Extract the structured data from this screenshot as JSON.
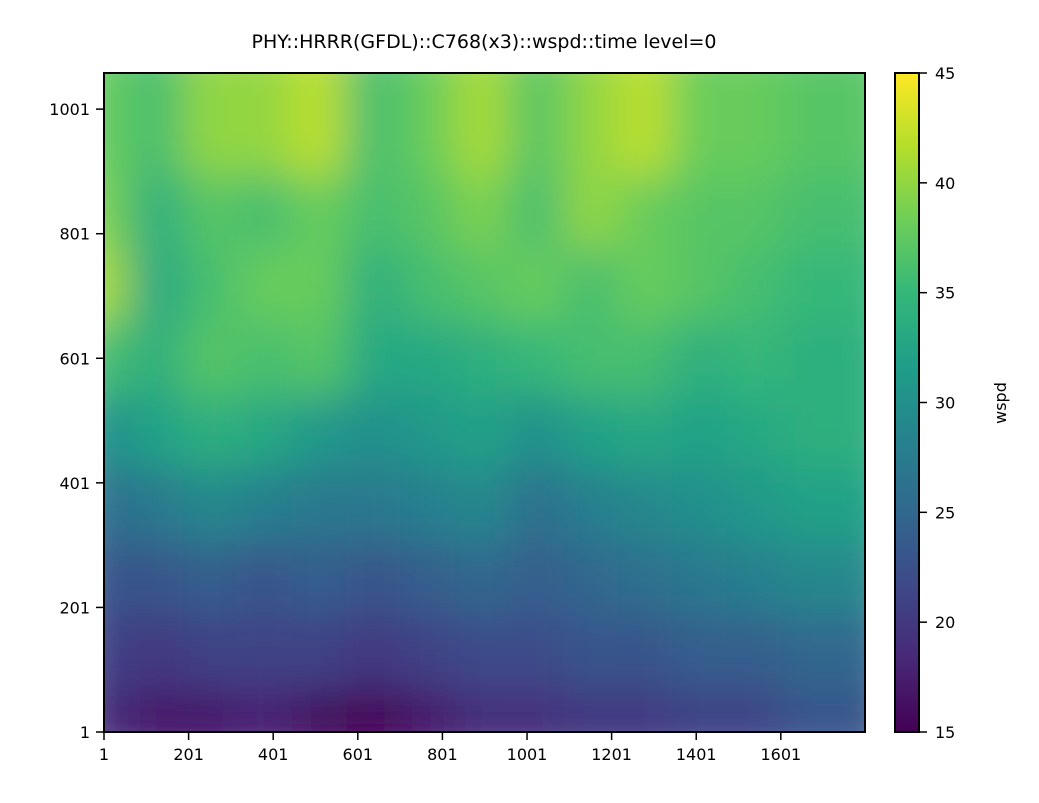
{
  "chart_data": {
    "type": "heatmap",
    "title": "PHY::HRRR(GFDL)::C768(x3)::wspd::time level=0",
    "xlabel": "",
    "ylabel": "",
    "x_ticks": [
      1,
      201,
      401,
      601,
      801,
      1001,
      1201,
      1401,
      1601
    ],
    "y_ticks": [
      1,
      201,
      401,
      601,
      801,
      1001
    ],
    "xlim": [
      1,
      1800
    ],
    "ylim": [
      1,
      1059
    ],
    "colorbar": {
      "label": "wspd",
      "min": 15,
      "max": 45,
      "ticks": [
        15,
        20,
        25,
        30,
        35,
        40,
        45
      ],
      "colormap": "viridis",
      "colors": [
        "#440154",
        "#482878",
        "#3e4989",
        "#31688e",
        "#26828e",
        "#1f9e89",
        "#35b779",
        "#6ece58",
        "#b5de2b",
        "#fde725"
      ]
    },
    "field_rows_bottom_to_top": [
      [
        19,
        17,
        17,
        18,
        16,
        15,
        17,
        19,
        19,
        20,
        20,
        21,
        21,
        23
      ],
      [
        21,
        20,
        21,
        21,
        21,
        20,
        21,
        22,
        22,
        23,
        23,
        24,
        24,
        25
      ],
      [
        23,
        23,
        24,
        23,
        24,
        23,
        24,
        25,
        24,
        25,
        26,
        27,
        28,
        29
      ],
      [
        26,
        27,
        29,
        28,
        27,
        27,
        28,
        29,
        26,
        28,
        29,
        30,
        31,
        32
      ],
      [
        30,
        32,
        34,
        33,
        31,
        30,
        31,
        32,
        30,
        32,
        33,
        32,
        33,
        34
      ],
      [
        36,
        34,
        37,
        36,
        37,
        33,
        33,
        34,
        35,
        36,
        36,
        34,
        35,
        34
      ],
      [
        41,
        33,
        36,
        38,
        38,
        34,
        36,
        37,
        38,
        36,
        38,
        37,
        36,
        35
      ],
      [
        39,
        34,
        37,
        36,
        38,
        36,
        37,
        39,
        36,
        40,
        38,
        37,
        37,
        36
      ],
      [
        38,
        36,
        40,
        40,
        42,
        36,
        38,
        41,
        37,
        40,
        42,
        38,
        38,
        37
      ]
    ]
  }
}
